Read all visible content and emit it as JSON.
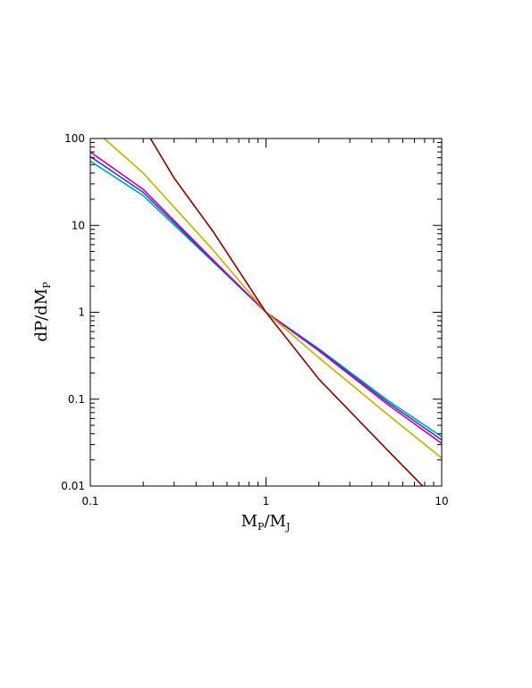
{
  "chart_data": {
    "type": "line",
    "title": "",
    "xlabel": {
      "main": "M",
      "sub1": "P",
      "sep": "/M",
      "sub2": "J"
    },
    "ylabel": {
      "main": "dP/dM",
      "sub": "P"
    },
    "x_scale": "log",
    "y_scale": "log",
    "xlim": [
      0.1,
      10
    ],
    "ylim": [
      0.01,
      100
    ],
    "x_ticks": [
      {
        "value": 0.1,
        "label": "0.1"
      },
      {
        "value": 1,
        "label": "1"
      },
      {
        "value": 10,
        "label": "10"
      }
    ],
    "y_ticks": [
      {
        "value": 0.01,
        "label": "0.01"
      },
      {
        "value": 0.1,
        "label": "0.1"
      },
      {
        "value": 1,
        "label": "1"
      },
      {
        "value": 10,
        "label": "10"
      },
      {
        "value": 100,
        "label": "100"
      }
    ],
    "grid": false,
    "legend": "none",
    "series": [
      {
        "color": "#00a0b0",
        "x": [
          0.1,
          0.2,
          0.5,
          1,
          2,
          5,
          10
        ],
        "y": [
          55,
          22,
          3.8,
          1,
          0.38,
          0.095,
          0.037
        ]
      },
      {
        "color": "#3040c0",
        "x": [
          0.1,
          0.2,
          0.5,
          1,
          2,
          5,
          10
        ],
        "y": [
          62,
          24,
          3.9,
          1,
          0.37,
          0.09,
          0.034
        ]
      },
      {
        "color": "#c000a0",
        "x": [
          0.1,
          0.2,
          0.5,
          1,
          2,
          5,
          10
        ],
        "y": [
          70,
          26,
          4.0,
          1,
          0.36,
          0.085,
          0.031
        ]
      },
      {
        "color": "#c0b000",
        "x": [
          0.1,
          0.12,
          0.2,
          0.5,
          1,
          2,
          5,
          10
        ],
        "y": [
          140,
          100,
          40,
          5.2,
          1,
          0.3,
          0.065,
          0.021
        ]
      },
      {
        "color": "#800000",
        "x": [
          0.1,
          0.22,
          0.3,
          0.5,
          1,
          2,
          5,
          7.8
        ],
        "y": [
          1000,
          100,
          35,
          8.5,
          1,
          0.17,
          0.025,
          0.01
        ]
      }
    ]
  }
}
